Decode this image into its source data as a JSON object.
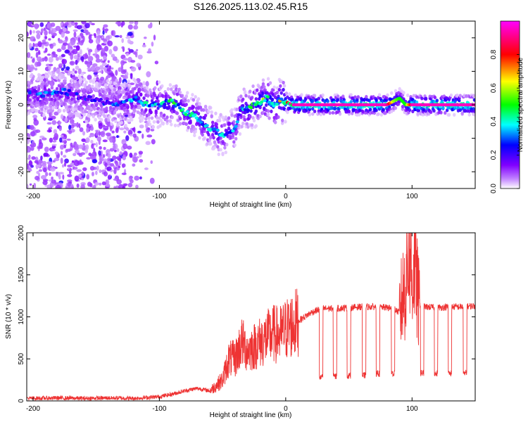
{
  "title": "S126.2025.113.02.45.R15",
  "chart_data": [
    {
      "type": "heatmap",
      "xlabel": "Height of straight line (km)",
      "ylabel": "Frequency (Hz)",
      "xlim": [
        -205,
        150
      ],
      "ylim": [
        -25,
        25
      ],
      "xticks": [
        -200,
        -100,
        0,
        100
      ],
      "yticks": [
        -20,
        -10,
        0,
        10,
        20
      ],
      "colorbar": {
        "label": "Normalized spectral amplitude",
        "range": [
          0,
          1
        ],
        "ticks": [
          "0.0",
          "0.2",
          "0.4",
          "0.6",
          "0.8"
        ],
        "colors": [
          "#ffffff",
          "#8000ff",
          "#0000ff",
          "#00ffff",
          "#00ff00",
          "#ffff00",
          "#ff0000",
          "#ff00ff"
        ]
      },
      "ridge": {
        "x": [
          -205,
          -190,
          -175,
          -160,
          -145,
          -130,
          -120,
          -110,
          -100,
          -90,
          -80,
          -70,
          -60,
          -50,
          -40,
          -35,
          -30,
          -25,
          -20,
          -15,
          -10,
          -5,
          0,
          5,
          10,
          20,
          30,
          40,
          50,
          60,
          70,
          80,
          85,
          90,
          95,
          100,
          110,
          120,
          130,
          140,
          150
        ],
        "y": [
          4,
          3,
          4,
          2,
          1,
          0,
          2,
          0,
          0,
          1,
          -2,
          -4,
          -7,
          -9,
          -7,
          -1,
          -1,
          0,
          1,
          2,
          0,
          1,
          1,
          0,
          0,
          0,
          0,
          0,
          0,
          0,
          0,
          0,
          1,
          2,
          0,
          0,
          0,
          0,
          0,
          0,
          0
        ],
        "amplitude": [
          0.3,
          0.3,
          0.3,
          0.25,
          0.25,
          0.3,
          0.35,
          0.4,
          0.4,
          0.45,
          0.4,
          0.4,
          0.4,
          0.35,
          0.35,
          0.4,
          0.45,
          0.5,
          0.55,
          0.55,
          0.55,
          0.6,
          0.65,
          0.95,
          0.95,
          0.95,
          0.95,
          0.95,
          0.95,
          0.95,
          0.95,
          0.95,
          0.6,
          0.5,
          0.5,
          0.95,
          0.95,
          0.95,
          0.95,
          0.95,
          0.95
        ]
      }
    },
    {
      "type": "line",
      "xlabel": "Height of straight line (km)",
      "ylabel": "SNR (10 * v/v)",
      "xlim": [
        -205,
        150
      ],
      "ylim": [
        0,
        2000
      ],
      "xticks": [
        -200,
        -100,
        0,
        100
      ],
      "yticks": [
        0,
        500,
        1000,
        1500,
        2000
      ],
      "color": "#ee3333",
      "series": [
        {
          "x": [
            -205,
            -180,
            -160,
            -140,
            -120,
            -100,
            -90,
            -80,
            -70,
            -60,
            -50,
            -45,
            -40,
            -35,
            -30,
            -25,
            -20,
            -15,
            -10,
            -5,
            0,
            5,
            10,
            15,
            20,
            25,
            30,
            40,
            50,
            60,
            70,
            80,
            85,
            90,
            95,
            98,
            100,
            102,
            105,
            110,
            120,
            130,
            140,
            150
          ],
          "y": [
            30,
            35,
            30,
            35,
            30,
            50,
            80,
            120,
            150,
            120,
            250,
            500,
            500,
            700,
            600,
            650,
            700,
            750,
            800,
            780,
            850,
            900,
            950,
            1000,
            1050,
            1080,
            1100,
            1100,
            1110,
            1120,
            1120,
            1110,
            1100,
            1050,
            1400,
            1900,
            1400,
            1700,
            1150,
            1120,
            1110,
            1120,
            1120,
            1130
          ],
          "dips": [
            {
              "x": 28,
              "y": 280
            },
            {
              "x": 39,
              "y": 290
            },
            {
              "x": 50,
              "y": 300
            },
            {
              "x": 62,
              "y": 300
            },
            {
              "x": 73,
              "y": 320
            },
            {
              "x": 85,
              "y": 330
            },
            {
              "x": 108,
              "y": 330
            },
            {
              "x": 119,
              "y": 330
            },
            {
              "x": 130,
              "y": 330
            },
            {
              "x": 142,
              "y": 330
            }
          ]
        }
      ]
    }
  ]
}
